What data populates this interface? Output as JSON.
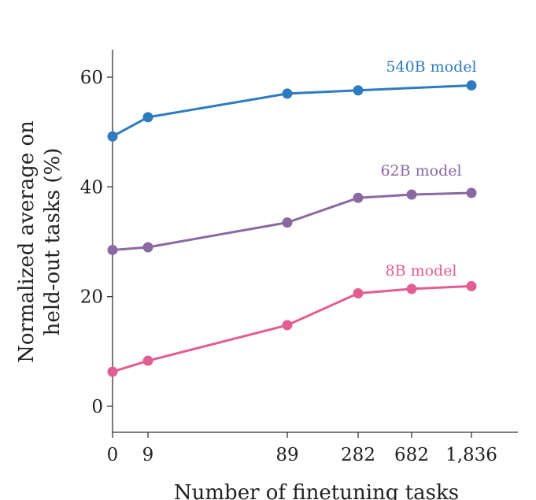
{
  "chart_data": {
    "type": "line",
    "title": "",
    "xlabel": "Number of finetuning tasks",
    "ylabel_lines": [
      "Normalized average on",
      "held-out tasks (%)"
    ],
    "x_tick_labels": [
      "0",
      "9",
      "89",
      "282",
      "682",
      "1,836"
    ],
    "y_ticks": [
      0,
      20,
      40,
      60
    ],
    "ylim": [
      -5,
      65
    ],
    "grid": false,
    "legend": "inline labels at line ends",
    "series": [
      {
        "name": "540B model",
        "color": "#2f7bbf",
        "values": [
          49.2,
          52.7,
          57.0,
          57.6,
          null,
          58.5
        ]
      },
      {
        "name": "62B model",
        "color": "#8a68a2",
        "values": [
          28.5,
          29.0,
          33.5,
          38.0,
          38.6,
          38.9
        ]
      },
      {
        "name": "8B model",
        "color": "#e25d92",
        "values": [
          6.3,
          8.3,
          14.8,
          20.6,
          21.4,
          21.9
        ]
      }
    ]
  }
}
